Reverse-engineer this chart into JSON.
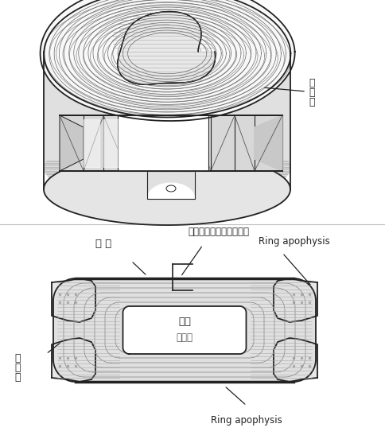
{
  "bg_color": "#ffffff",
  "line_color": "#222222",
  "label_color": "#111111",
  "fig_width": 4.84,
  "fig_height": 5.62,
  "dpi": 100,
  "top_label_annulus": "線維輪",
  "bottom_label_endplate": "終 板",
  "bottom_label_collagen": "終板内のコラーゲン線維",
  "bottom_label_ring_top": "Ring apophysis",
  "bottom_label_ring_bottom": "Ring apophysis",
  "bottom_label_nucleus_top": "髓核",
  "bottom_label_nucleus_bot": "髓　核",
  "bottom_label_annulus": "線維輪"
}
